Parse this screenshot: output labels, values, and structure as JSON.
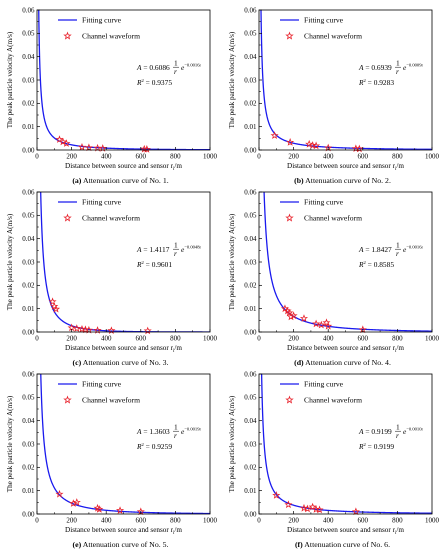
{
  "chart_data": [
    {
      "type": "line",
      "caption_id": "(a)",
      "caption_text": "Attenuation curve of No. 1.",
      "xlabel": "Distance between source and sensor r",
      "xlabel_sub": "i",
      "xlabel_unit": "/m",
      "ylabel": "The peak particle velocity A(m/s)",
      "xlim": [
        0,
        1000
      ],
      "ylim": [
        0,
        0.06
      ],
      "xticks": [
        0,
        200,
        400,
        600,
        800,
        1000
      ],
      "yticks": [
        0.0,
        0.01,
        0.02,
        0.03,
        0.04,
        0.05,
        0.06
      ],
      "legend": [
        "Fitting curve",
        "Channel waveform"
      ],
      "equation": {
        "A_coef": "0.6086",
        "exp": "−0.0016r",
        "r2": "0.9375"
      },
      "fit": {
        "a": 0.6086,
        "k": 0.0016
      },
      "points_x": [
        130,
        150,
        170,
        260,
        300,
        350,
        380,
        620,
        635
      ],
      "points_y": [
        0.0045,
        0.0035,
        0.0028,
        0.0012,
        0.001,
        0.0008,
        0.0007,
        0.0004,
        0.0003
      ]
    },
    {
      "type": "line",
      "caption_id": "(b)",
      "caption_text": "Attenuation curve of No. 2.",
      "xlabel": "Distance between source and sensor r",
      "xlabel_sub": "i",
      "xlabel_unit": "/m",
      "ylabel": "The peak particle velocity A(m/s)",
      "xlim": [
        0,
        1000
      ],
      "ylim": [
        0,
        0.06
      ],
      "xticks": [
        0,
        200,
        400,
        600,
        800,
        1000
      ],
      "yticks": [
        0.0,
        0.01,
        0.02,
        0.03,
        0.04,
        0.05,
        0.06
      ],
      "legend": [
        "Fitting curve",
        "Channel waveform"
      ],
      "equation": {
        "A_coef": "0.6939",
        "exp": "−0.0009r",
        "r2": "0.9283"
      },
      "fit": {
        "a": 0.6939,
        "k": 0.0009
      },
      "points_x": [
        90,
        180,
        290,
        310,
        330,
        400,
        560,
        580
      ],
      "points_y": [
        0.0062,
        0.0033,
        0.0025,
        0.002,
        0.0018,
        0.0009,
        0.0006,
        0.0005
      ]
    },
    {
      "type": "line",
      "caption_id": "(c)",
      "caption_text": "Attenuation curve of No. 3.",
      "xlabel": "Distance between source and sensor r",
      "xlabel_sub": "i",
      "xlabel_unit": "/m",
      "ylabel": "The peak particle velocity A(m/s)",
      "xlim": [
        0,
        1000
      ],
      "ylim": [
        0,
        0.06
      ],
      "xticks": [
        0,
        200,
        400,
        600,
        800,
        1000
      ],
      "yticks": [
        0.0,
        0.01,
        0.02,
        0.03,
        0.04,
        0.05,
        0.06
      ],
      "legend": [
        "Fitting curve",
        "Channel waveform"
      ],
      "equation": {
        "A_coef": "1.4117",
        "exp": "−0.0048r",
        "r2": "0.9601"
      },
      "fit": {
        "a": 1.4117,
        "k": 0.0048
      },
      "points_x": [
        90,
        100,
        110,
        200,
        230,
        260,
        280,
        300,
        350,
        430,
        640
      ],
      "points_y": [
        0.013,
        0.011,
        0.0098,
        0.0018,
        0.0015,
        0.0012,
        0.001,
        0.0008,
        0.0007,
        0.0006,
        0.0005
      ]
    },
    {
      "type": "line",
      "caption_id": "(d)",
      "caption_text": "Attenuation curve of No. 4.",
      "xlabel": "Distance between source and sensor r",
      "xlabel_sub": "i",
      "xlabel_unit": "/m",
      "ylabel": "The peak particle velocity A(m/s)",
      "xlim": [
        0,
        1000
      ],
      "ylim": [
        0,
        0.06
      ],
      "xticks": [
        0,
        200,
        400,
        600,
        800,
        1000
      ],
      "yticks": [
        0.0,
        0.01,
        0.02,
        0.03,
        0.04,
        0.05,
        0.06
      ],
      "legend": [
        "Fitting curve",
        "Channel waveform"
      ],
      "equation": {
        "A_coef": "1.8427",
        "exp": "−0.0016r",
        "r2": "0.8585"
      },
      "fit": {
        "a": 1.8427,
        "k": 0.0016
      },
      "points_x": [
        150,
        165,
        175,
        185,
        200,
        260,
        330,
        360,
        390,
        400,
        600
      ],
      "points_y": [
        0.01,
        0.009,
        0.0082,
        0.0065,
        0.007,
        0.0058,
        0.0035,
        0.003,
        0.004,
        0.0025,
        0.001
      ]
    },
    {
      "type": "line",
      "caption_id": "(e)",
      "caption_text": "Attenuation curve of No. 5.",
      "xlabel": "Distance between source and sensor r",
      "xlabel_sub": "i",
      "xlabel_unit": "/m",
      "ylabel": "The peak particle velocity A(m/s)",
      "xlim": [
        0,
        1000
      ],
      "ylim": [
        0,
        0.06
      ],
      "xticks": [
        0,
        200,
        400,
        600,
        800,
        1000
      ],
      "yticks": [
        0.0,
        0.01,
        0.02,
        0.03,
        0.04,
        0.05,
        0.06
      ],
      "legend": [
        "Fitting curve",
        "Channel waveform"
      ],
      "equation": {
        "A_coef": "1.3603",
        "exp": "−0.0019r",
        "r2": "0.9259"
      },
      "fit": {
        "a": 1.3603,
        "k": 0.0019
      },
      "points_x": [
        130,
        210,
        230,
        350,
        360,
        480,
        600
      ],
      "points_y": [
        0.0085,
        0.0045,
        0.005,
        0.0025,
        0.002,
        0.0015,
        0.001
      ]
    },
    {
      "type": "line",
      "caption_id": "(f)",
      "caption_text": "Attenuation curve of No. 6.",
      "xlabel": "Distance between source and sensor r",
      "xlabel_sub": "i",
      "xlabel_unit": "/m",
      "ylabel": "The peak particle velocity A(m/s)",
      "xlim": [
        0,
        1000
      ],
      "ylim": [
        0,
        0.06
      ],
      "xticks": [
        0,
        200,
        400,
        600,
        800,
        1000
      ],
      "yticks": [
        0.0,
        0.01,
        0.02,
        0.03,
        0.04,
        0.05,
        0.06
      ],
      "legend": [
        "Fitting curve",
        "Channel waveform"
      ],
      "equation": {
        "A_coef": "0.9199",
        "exp": "−0.0010r",
        "r2": "0.9199"
      },
      "fit": {
        "a": 0.9199,
        "k": 0.001
      },
      "points_x": [
        100,
        170,
        260,
        280,
        310,
        330,
        350,
        560
      ],
      "points_y": [
        0.008,
        0.004,
        0.0025,
        0.0022,
        0.003,
        0.002,
        0.0018,
        0.001
      ]
    }
  ],
  "colors": {
    "curve": "#1a1aee",
    "marker": "#e8202a",
    "axis": "#000000"
  }
}
